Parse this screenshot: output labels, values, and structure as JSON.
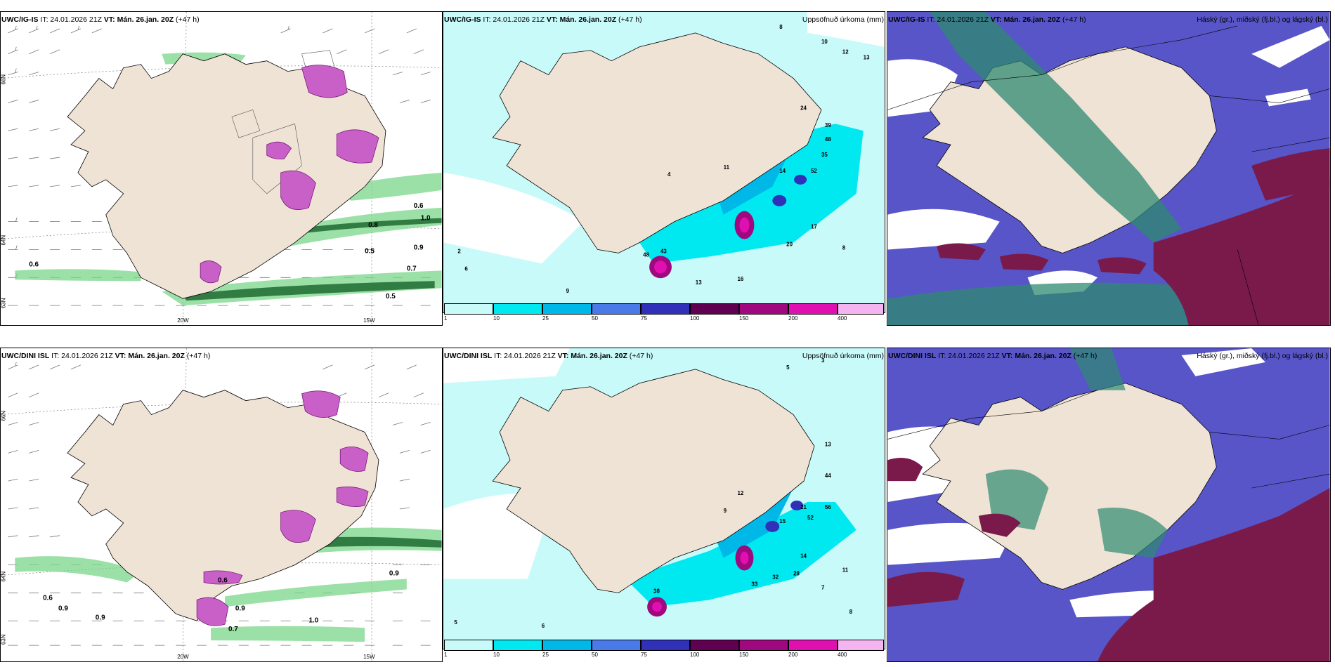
{
  "rows": [
    {
      "model": "UWC/IG-IS",
      "it": "IT: 24.01.2026 21Z",
      "vt_label": "VT:",
      "vt": "Mán. 26.jan. 20Z",
      "lead": "(+47 h)",
      "precip_title": "Uppsöfnuð úrkoma (mm)",
      "cloud_title": "Háský (gr.), miðský (fj.bl.) og lágský (bl.)",
      "lat_labels": [
        "66N",
        "64N",
        "63N"
      ],
      "lon_labels": [
        "20W",
        "15W"
      ],
      "left_values": [
        "0.6",
        "0.5",
        "0.8",
        "1.0",
        "0.6",
        "0.9",
        "0.7",
        "0.5"
      ],
      "precip_values": [
        "8",
        "10",
        "12",
        "13",
        "24",
        "39",
        "48",
        "52",
        "35",
        "14",
        "11",
        "4",
        "43",
        "48",
        "20",
        "16",
        "13",
        "9",
        "6",
        "2",
        "8",
        "17"
      ]
    },
    {
      "model": "UWC/DINI ISL",
      "it": "IT: 24.01.2026 21Z",
      "vt_label": "VT:",
      "vt": "Mán. 26.jan. 20Z",
      "lead": "(+47 h)",
      "precip_title": "Uppsöfnuð úrkoma (mm)",
      "cloud_title": "Háský (gr.), miðský (fj.bl.) og lágský (bl.)",
      "lat_labels": [
        "66N",
        "64N",
        "63N"
      ],
      "lon_labels": [
        "20W",
        "15W"
      ],
      "left_values": [
        "0.6",
        "0.9",
        "0.9",
        "0.6",
        "0.9",
        "0.7",
        "1.0",
        "0.9"
      ],
      "precip_values": [
        "5",
        "3",
        "13",
        "44",
        "56",
        "52",
        "21",
        "15",
        "12",
        "9",
        "38",
        "33",
        "32",
        "28",
        "14",
        "11",
        "7",
        "5",
        "6",
        "8"
      ]
    }
  ],
  "colorbar": {
    "ticks": [
      "1",
      "10",
      "25",
      "50",
      "75",
      "100",
      "150",
      "200",
      "400"
    ],
    "colors": [
      "#c8fafa",
      "#00e8f0",
      "#00b8e8",
      "#4a7ae8",
      "#3030b8",
      "#600050",
      "#a00880",
      "#e010b0",
      "#f4b4f0"
    ]
  },
  "colors": {
    "land": "#efe3d6",
    "sea_light": "#c8fafa",
    "sea_mid": "#00e8f0",
    "cloud_high": "#2e8a70",
    "cloud_mid": "#5855c8",
    "cloud_low": "#7a1a4a"
  }
}
